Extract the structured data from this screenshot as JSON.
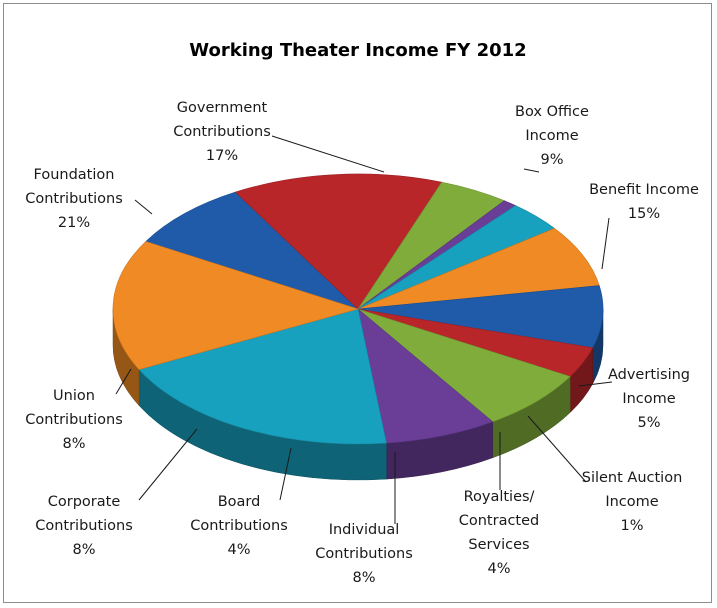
{
  "chart_data": {
    "type": "pie",
    "title": "Working Theater Income FY 2012",
    "slices": [
      {
        "label_lines": [
          "Box Office",
          "Income"
        ],
        "percent_label": "9%",
        "value": 9,
        "color": "#1f5ba8"
      },
      {
        "label_lines": [
          "Benefit Income"
        ],
        "percent_label": "15%",
        "value": 15,
        "color": "#b8262a"
      },
      {
        "label_lines": [
          "Advertising",
          "Income"
        ],
        "percent_label": "5%",
        "value": 5,
        "color": "#7fac3a"
      },
      {
        "label_lines": [
          "Silent Auction",
          "Income"
        ],
        "percent_label": "1%",
        "value": 1,
        "color": "#6a3e97"
      },
      {
        "label_lines": [
          "Royalties/",
          "Contracted",
          "Services"
        ],
        "percent_label": "4%",
        "value": 4,
        "color": "#17a1bf"
      },
      {
        "label_lines": [
          "Individual",
          "Contributions"
        ],
        "percent_label": "8%",
        "value": 8,
        "color": "#f08a24"
      },
      {
        "label_lines": [
          "Individual",
          "Contributions"
        ],
        "percent_label": "8%",
        "value": 8,
        "color": "#1f5ba8"
      },
      {
        "label_lines": [
          "Board",
          "Contributions"
        ],
        "percent_label": "4%",
        "value": 4,
        "color": "#b8262a"
      },
      {
        "label_lines": [
          "Corporate",
          "Contributions"
        ],
        "percent_label": "8%",
        "value": 8,
        "color": "#7fac3a"
      },
      {
        "label_lines": [
          "Union",
          "Contributions"
        ],
        "percent_label": "8%",
        "value": 8,
        "color": "#6a3e97"
      },
      {
        "label_lines": [
          "Foundation",
          "Contributions"
        ],
        "percent_label": "21%",
        "value": 21,
        "color": "#17a1bf"
      },
      {
        "label_lines": [
          "Government",
          "Contributions"
        ],
        "percent_label": "17%",
        "value": 17,
        "color": "#f08a24"
      }
    ],
    "legend": "none (category labels with leader lines)"
  }
}
